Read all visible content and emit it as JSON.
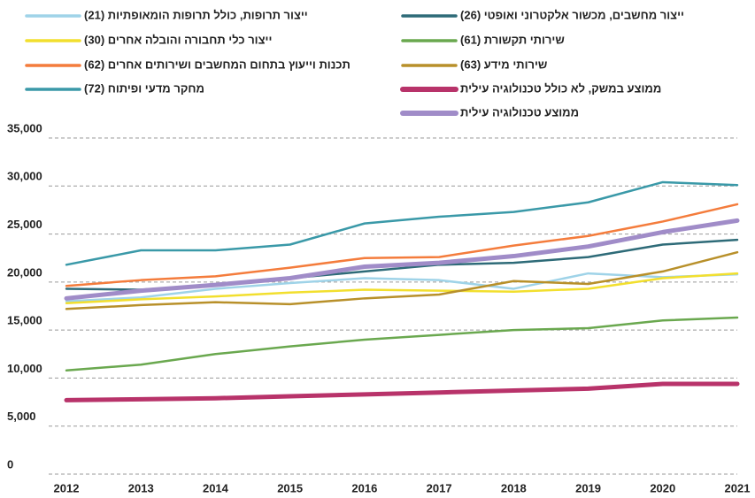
{
  "chart_data": {
    "type": "line",
    "categories": [
      "2012",
      "2013",
      "2014",
      "2015",
      "2016",
      "2017",
      "2018",
      "2019",
      "2020",
      "2021"
    ],
    "ylim": [
      0,
      35000
    ],
    "yticks": [
      0,
      {
        "value": 5000,
        "label": "5,000"
      },
      {
        "value": 10000,
        "label": "10,000"
      },
      {
        "value": 15000,
        "label": "15,000"
      },
      {
        "value": 20000,
        "label": "20,000"
      },
      {
        "value": 25000,
        "label": "25,000"
      },
      {
        "value": 30000,
        "label": "30,000"
      },
      {
        "value": 35000,
        "label": "35,000"
      }
    ],
    "grid": true,
    "series": [
      {
        "name": "ייצור מחשבים, מכשור אלקטרוני ואופטי (26)",
        "color": "#2e6b78",
        "width": 2.5,
        "values": [
          19300,
          19200,
          19700,
          20400,
          21100,
          21800,
          22000,
          22600,
          23900,
          24400
        ]
      },
      {
        "name": "ייצור תרופות, כולל תרופות הומאופתיות (21)",
        "color": "#9fd3e8",
        "width": 2.5,
        "values": [
          18000,
          18400,
          19300,
          19900,
          20400,
          20200,
          19300,
          20900,
          20500,
          20800
        ]
      },
      {
        "name": "שירותי תקשורת (61)",
        "color": "#6aa84f",
        "width": 2.5,
        "values": [
          10800,
          11400,
          12500,
          13300,
          14000,
          14500,
          15000,
          15200,
          16000,
          16300
        ]
      },
      {
        "name": "ייצור כלי תחבורה והובלה אחרים (30)",
        "color": "#f2df2e",
        "width": 2.5,
        "values": [
          17800,
          18200,
          18500,
          18900,
          19200,
          19100,
          19000,
          19300,
          20400,
          20900
        ]
      },
      {
        "name": "שירותי מידע (63)",
        "color": "#b8902a",
        "width": 2.5,
        "values": [
          17200,
          17600,
          17900,
          17700,
          18300,
          18700,
          20100,
          19800,
          21100,
          23100
        ]
      },
      {
        "name": "תכנות וייעוץ בתחום המחשבים ושירותים אחרים (62)",
        "color": "#f47c3c",
        "width": 2.5,
        "values": [
          19600,
          20200,
          20600,
          21500,
          22500,
          22600,
          23800,
          24800,
          26300,
          28100
        ]
      },
      {
        "name": "ממוצע במשק, לא כולל טכנולוגיה עילית",
        "color": "#b8336a",
        "width": 5,
        "values": [
          7700,
          7800,
          7900,
          8100,
          8300,
          8500,
          8700,
          8900,
          9400,
          9400
        ]
      },
      {
        "name": "מחקר מדעי ופיתוח (72)",
        "color": "#3a99a8",
        "width": 2.5,
        "values": [
          21800,
          23300,
          23300,
          23900,
          26100,
          26800,
          27300,
          28300,
          30400,
          30100
        ]
      },
      {
        "name": "ממוצע טכנולוגיה עילית",
        "color": "#a08cc8",
        "width": 5,
        "values": [
          18300,
          19100,
          19700,
          20400,
          21600,
          22000,
          22700,
          23700,
          25200,
          26400
        ]
      }
    ]
  }
}
